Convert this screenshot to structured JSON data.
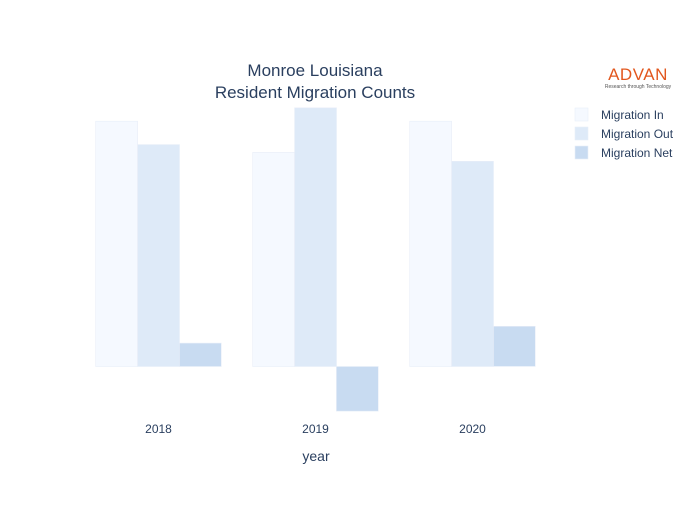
{
  "logo": {
    "brand": "ADVAN",
    "tagline": "Research through Technology"
  },
  "chart_data": {
    "type": "bar",
    "title": "Monroe Louisiana\nResident Migration Counts",
    "title_lines": [
      "Monroe Louisiana",
      "Resident Migration Counts"
    ],
    "xlabel": "year",
    "ylabel": "",
    "categories": [
      "2018",
      "2019",
      "2020"
    ],
    "series": [
      {
        "name": "Migration In",
        "values": [
          11000,
          9600,
          11000
        ],
        "color": "#f5f9ff"
      },
      {
        "name": "Migration Out",
        "values": [
          9950,
          11600,
          9200
        ],
        "color": "#deeaf8"
      },
      {
        "name": "Migration Net",
        "values": [
          1050,
          -2000,
          1800
        ],
        "color": "#c8dbf1"
      }
    ],
    "ylim": [
      -2400,
      11950
    ],
    "grid": false,
    "legend_position": "top-right"
  }
}
